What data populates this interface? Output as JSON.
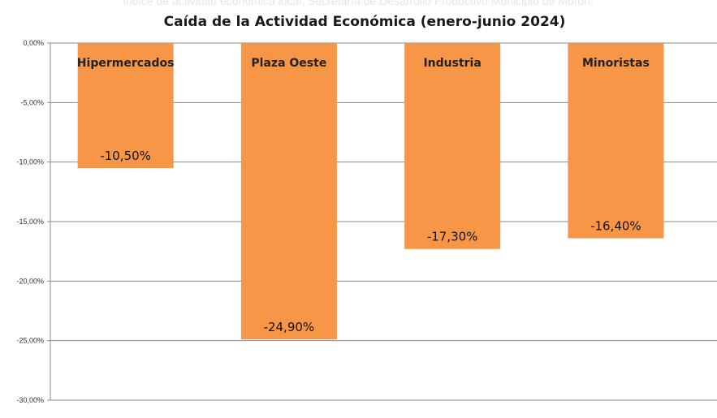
{
  "source_note": "Índice de actividad económica local. Secretaría de Desarrollo Productivo Municipio de Morón.",
  "chart_data": {
    "type": "bar",
    "title": "Caída de la Actividad Económica (enero-junio 2024)",
    "xlabel": "",
    "ylabel": "",
    "categories": [
      "Hipermercados",
      "Plaza Oeste",
      "Industria",
      "Minoristas"
    ],
    "values": [
      -10.5,
      -24.9,
      -17.3,
      -16.4
    ],
    "data_labels": [
      "-10,50%",
      "-24,90%",
      "-17,30%",
      "-16,40%"
    ],
    "ylim": [
      -30,
      0
    ],
    "yticks": [
      0,
      -5,
      -10,
      -15,
      -20,
      -25,
      -30
    ],
    "ytick_labels": [
      "0,00%",
      "-5,00%",
      "-10,00%",
      "-15,00%",
      "-20,00%",
      "-25,00%",
      "-30,00%"
    ],
    "bar_color": "#F79646",
    "grid": true,
    "legend": "none"
  }
}
